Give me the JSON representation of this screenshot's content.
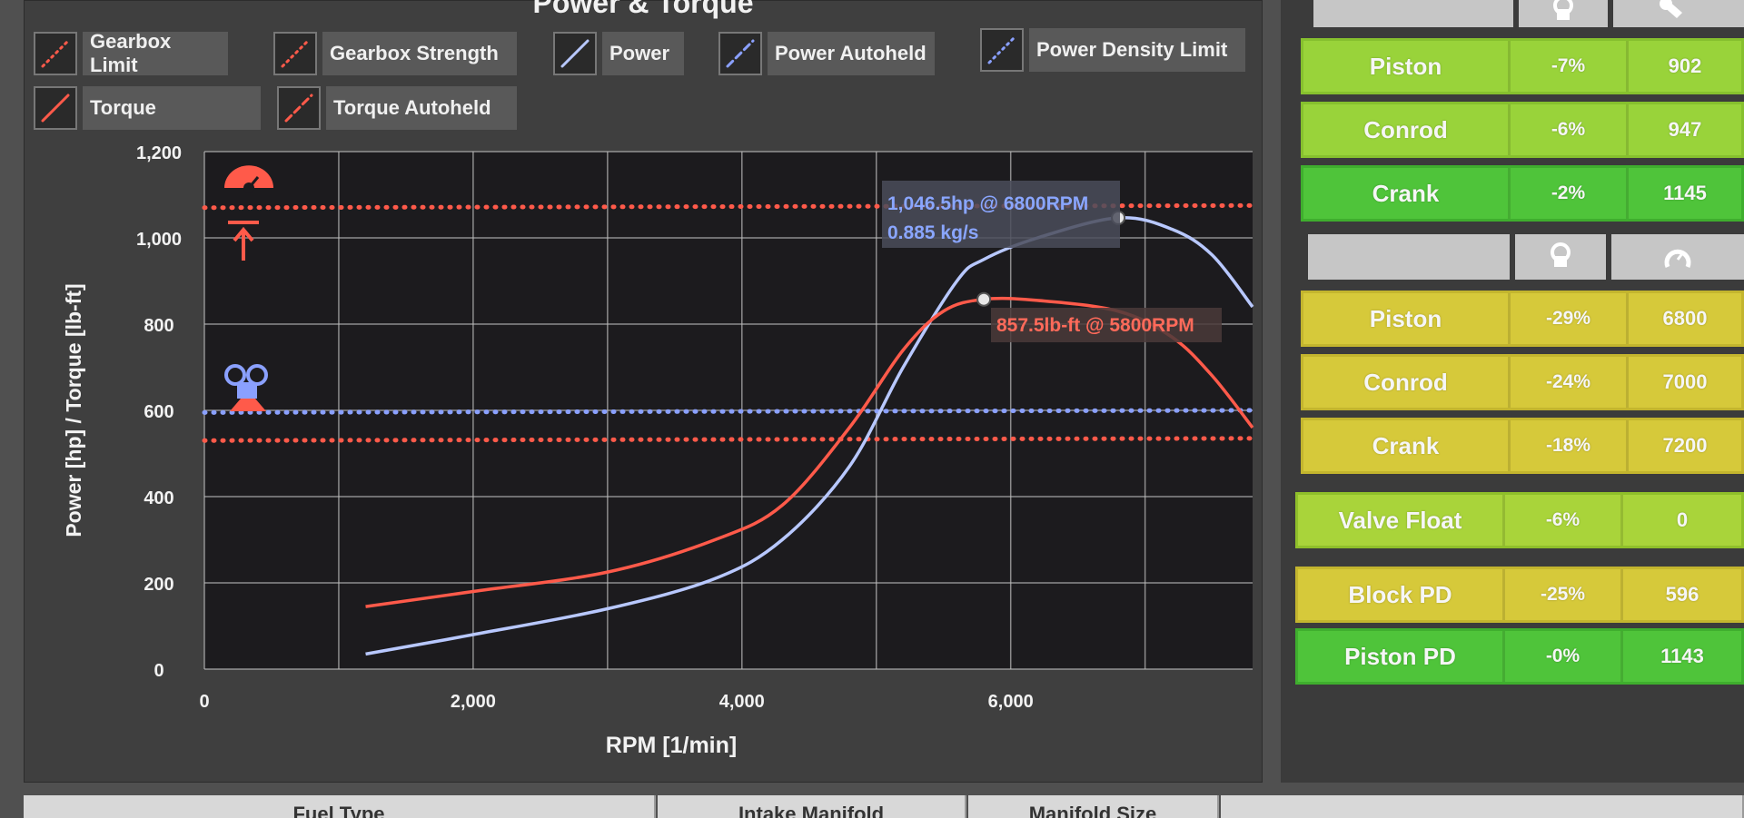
{
  "chart": {
    "title": "Power & Torque",
    "x_label": "RPM [1/min]",
    "y_label": "Power [hp] / Torque [lb-ft]",
    "legend": [
      {
        "id": "gearbox-limit",
        "label": "Gearbox Limit"
      },
      {
        "id": "gearbox-strength",
        "label": "Gearbox Strength"
      },
      {
        "id": "power",
        "label": "Power"
      },
      {
        "id": "power-autoheld",
        "label": "Power Autoheld"
      },
      {
        "id": "power-density-limit",
        "label": "Power Density Limit"
      },
      {
        "id": "torque",
        "label": "Torque"
      },
      {
        "id": "torque-autoheld",
        "label": "Torque Autoheld"
      }
    ],
    "colors": {
      "power": "#b8c8ff",
      "torque": "#ff5a4a",
      "grid": "#bdbdbd",
      "plot_bg": "#1c1b1e"
    },
    "annotations": {
      "power_peak": "1,046.5hp @ 6800RPM",
      "power_density": "0.885 kg/s",
      "torque_peak": "857.5lb-ft @ 5800RPM"
    }
  },
  "chart_data": {
    "type": "line",
    "xlim": [
      0,
      7800
    ],
    "ylim": [
      0,
      1200
    ],
    "x_ticks": [
      {
        "value": 0,
        "label": "0"
      },
      {
        "value": 2000,
        "label": "2,000"
      },
      {
        "value": 4000,
        "label": "4,000"
      },
      {
        "value": 6000,
        "label": "6,000"
      }
    ],
    "y_ticks": [
      {
        "value": 0,
        "label": "0"
      },
      {
        "value": 200,
        "label": "200"
      },
      {
        "value": 400,
        "label": "400"
      },
      {
        "value": 600,
        "label": "600"
      },
      {
        "value": 800,
        "label": "800"
      },
      {
        "value": 1000,
        "label": "1,000"
      },
      {
        "value": 1200,
        "label": "1,200"
      }
    ],
    "grid": true,
    "series": [
      {
        "name": "Power",
        "color": "#b8c8ff",
        "x": [
          1200,
          2000,
          3000,
          3800,
          4300,
          4800,
          5200,
          5600,
          5800,
          6200,
          6800,
          7200,
          7500,
          7800
        ],
        "y": [
          35,
          80,
          140,
          210,
          300,
          470,
          700,
          900,
          950,
          1000,
          1046.5,
          1020,
          960,
          840
        ]
      },
      {
        "name": "Torque",
        "color": "#ff5a4a",
        "x": [
          1200,
          2000,
          3000,
          3800,
          4300,
          4800,
          5200,
          5500,
          5800,
          6200,
          6800,
          7200,
          7500,
          7800
        ],
        "y": [
          145,
          180,
          225,
          300,
          380,
          560,
          740,
          830,
          857.5,
          855,
          830,
          770,
          680,
          560
        ]
      },
      {
        "name": "Gearbox Limit",
        "color": "#ff5a4a",
        "x": [
          0,
          7800
        ],
        "y": [
          1070,
          1075
        ]
      },
      {
        "name": "Gearbox Strength",
        "color": "#ff5a4a",
        "x": [
          0,
          7800
        ],
        "y": [
          530,
          535
        ]
      },
      {
        "name": "Power Density Limit",
        "color": "#8aa0ff",
        "x": [
          0,
          7800
        ],
        "y": [
          595,
          600
        ]
      }
    ],
    "markers": [
      {
        "series": "Power",
        "x": 6800,
        "y": 1046.5
      },
      {
        "series": "Torque",
        "x": 5800,
        "y": 857.5
      }
    ]
  },
  "panel1": {
    "rows": [
      {
        "name": "Piston",
        "pct": "-7%",
        "val": "902"
      },
      {
        "name": "Conrod",
        "pct": "-6%",
        "val": "947"
      },
      {
        "name": "Crank",
        "pct": "-2%",
        "val": "1145"
      }
    ]
  },
  "panel2": {
    "rows": [
      {
        "name": "Piston",
        "pct": "-29%",
        "val": "6800"
      },
      {
        "name": "Conrod",
        "pct": "-24%",
        "val": "7000"
      },
      {
        "name": "Crank",
        "pct": "-18%",
        "val": "7200"
      }
    ]
  },
  "panel3": {
    "rows": [
      {
        "name": "Valve Float",
        "pct": "-6%",
        "val": "0"
      },
      {
        "name": "Block PD",
        "pct": "-25%",
        "val": "596"
      },
      {
        "name": "Piston PD",
        "pct": "-0%",
        "val": "1143"
      }
    ]
  },
  "bottom_tabs": [
    "Fuel Type",
    "Intake Manifold",
    "Manifold Size"
  ]
}
